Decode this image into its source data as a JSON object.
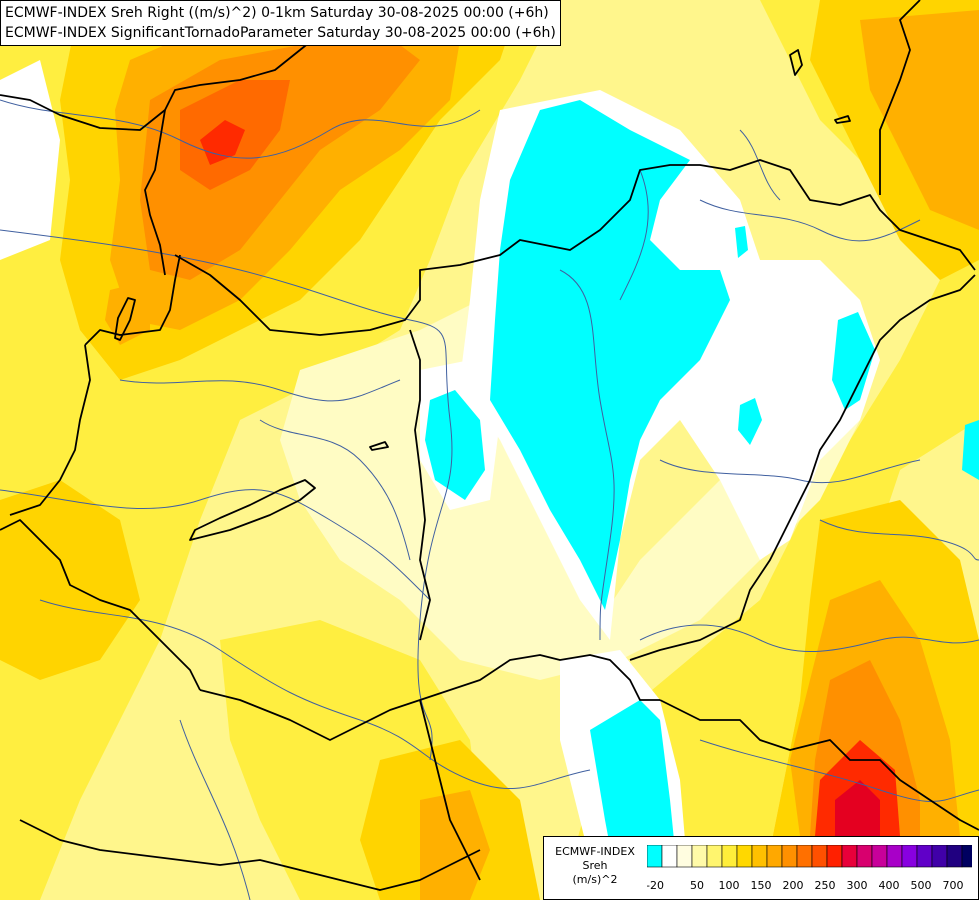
{
  "titles": {
    "line1": "ECMWF-INDEX Sreh Right ((m/s)^2) 0-1km Saturday 30-08-2025 00:00 (+6h)",
    "line2": "ECMWF-INDEX SignificantTornadoParameter Saturday 30-08-2025 00:00 (+6h)"
  },
  "legend": {
    "title_line1": "ECMWF-INDEX",
    "title_line2": "Sreh",
    "title_line3": "(m/s)^2",
    "swatch_colors": [
      "#00ffff",
      "#ffffff",
      "#fffde0",
      "#fffaa8",
      "#fff56e",
      "#ffee3a",
      "#ffd800",
      "#ffc000",
      "#ffa800",
      "#ff9000",
      "#ff7000",
      "#ff5000",
      "#ff2000",
      "#e8003a",
      "#d8006e",
      "#c8009a",
      "#a800c8",
      "#8800e0",
      "#6000c8",
      "#4000a8",
      "#200080",
      "#000060"
    ],
    "tick_labels": [
      "-20",
      "50",
      "100",
      "150",
      "200",
      "250",
      "300",
      "400",
      "500",
      "700"
    ]
  },
  "palette": {
    "cyan": "#00ffff",
    "white": "#ffffff",
    "pale": "#fffcc4",
    "lightyellow": "#fff68c",
    "yellow": "#ffee40",
    "gold": "#ffd400",
    "orange1": "#ffb000",
    "orange2": "#ff9000",
    "orange3": "#ff6a00",
    "red": "#ff2a00",
    "darkred": "#e40020",
    "border": "#000000",
    "river": "#4060a0"
  }
}
